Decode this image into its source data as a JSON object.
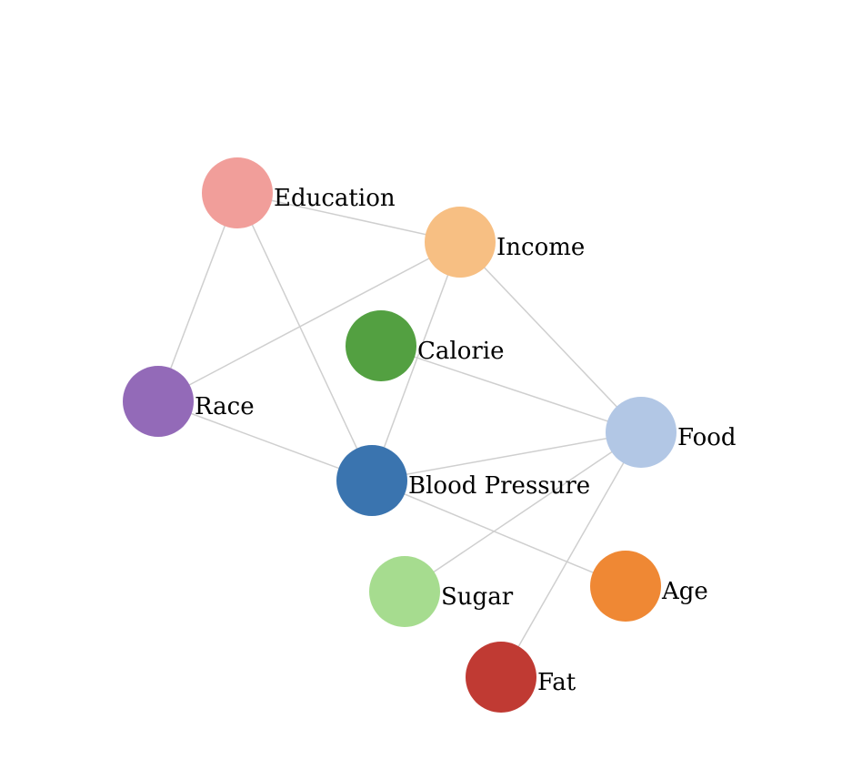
{
  "graph": {
    "nodes": [
      {
        "id": "education",
        "label": "Education",
        "color": "#f19e9a"
      },
      {
        "id": "income",
        "label": "Income",
        "color": "#f7bf83"
      },
      {
        "id": "calorie",
        "label": "Calorie",
        "color": "#53a041"
      },
      {
        "id": "race",
        "label": "Race",
        "color": "#936ab8"
      },
      {
        "id": "food",
        "label": "Food",
        "color": "#b2c7e5"
      },
      {
        "id": "blood-pressure",
        "label": "Blood Pressure",
        "color": "#3a74af"
      },
      {
        "id": "sugar",
        "label": "Sugar",
        "color": "#a6dc8f"
      },
      {
        "id": "age",
        "label": "Age",
        "color": "#ef8834"
      },
      {
        "id": "fat",
        "label": "Fat",
        "color": "#c03a33"
      }
    ],
    "edges": [
      {
        "source": "education",
        "target": "income"
      },
      {
        "source": "education",
        "target": "race"
      },
      {
        "source": "education",
        "target": "blood-pressure"
      },
      {
        "source": "income",
        "target": "race"
      },
      {
        "source": "income",
        "target": "blood-pressure"
      },
      {
        "source": "income",
        "target": "food"
      },
      {
        "source": "calorie",
        "target": "food"
      },
      {
        "source": "race",
        "target": "blood-pressure"
      },
      {
        "source": "food",
        "target": "blood-pressure"
      },
      {
        "source": "food",
        "target": "sugar"
      },
      {
        "source": "food",
        "target": "fat"
      },
      {
        "source": "blood-pressure",
        "target": "age"
      }
    ]
  }
}
